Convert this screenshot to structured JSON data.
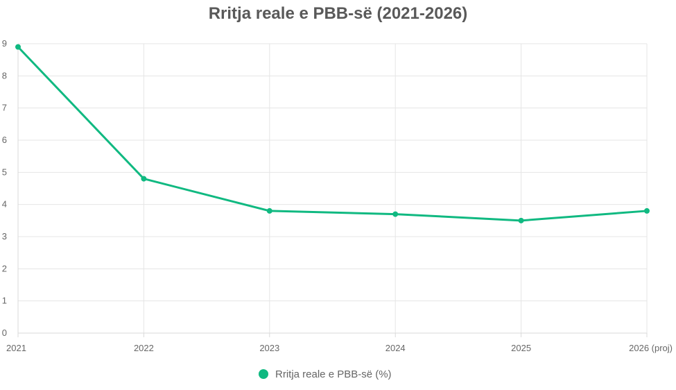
{
  "chart_data": {
    "type": "line",
    "title": "Rritja reale e PBB-së (2021-2026)",
    "categories": [
      "2021",
      "2022",
      "2023",
      "2024",
      "2025",
      "2026 (proj)"
    ],
    "series": [
      {
        "name": "Rritja reale e PBB-së (%)",
        "values": [
          8.9,
          4.8,
          3.8,
          3.7,
          3.5,
          3.8
        ],
        "color": "#10b981"
      }
    ],
    "ylim": [
      0,
      9
    ],
    "yticks": [
      0,
      1,
      2,
      3,
      4,
      5,
      6,
      7,
      8,
      9
    ],
    "grid": true,
    "legend": "bottom"
  }
}
